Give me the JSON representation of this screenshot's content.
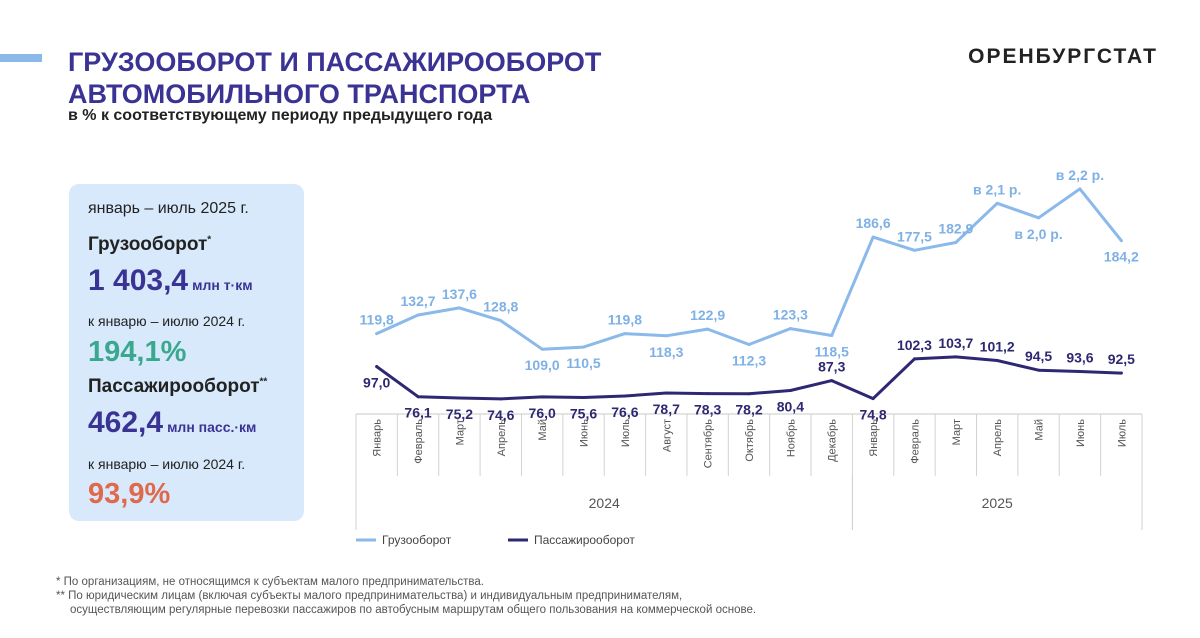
{
  "header": {
    "title_line1": "ГРУЗООБОРОТ И ПАССАЖИРООБОРОТ",
    "title_line2": "АВТОМОБИЛЬНОГО ТРАНСПОРТА",
    "subtitle": "в % к соответствующему периоду предыдущего года",
    "logo": "ОРЕНБУРГСТАТ"
  },
  "colors": {
    "title": "#3b3394",
    "freight": "#8ab9ea",
    "passenger": "#2e2872",
    "green": "#3aa88e",
    "red": "#e0694a",
    "panel": "#d8e9fb"
  },
  "panel": {
    "period": "январь – июль 2025 г.",
    "freight_label": "Грузооборот",
    "freight_mark": "*",
    "freight_value": "1 403,4",
    "freight_unit": "млн т·км",
    "freight_compare": "к январю – июлю 2024 г.",
    "freight_pct": "194,1%",
    "passenger_label": "Пассажирооборот",
    "passenger_mark": "**",
    "passenger_value": "462,4",
    "passenger_unit": "млн пасс.·км",
    "passenger_compare": "к январю – июлю 2024 г.",
    "passenger_pct": "93,9%"
  },
  "chart_data": {
    "type": "line",
    "categories": [
      "Январь",
      "Февраль",
      "Март",
      "Апрель",
      "Май",
      "Июнь",
      "Июль",
      "Август",
      "Сентябрь",
      "Октябрь",
      "Ноябрь",
      "Декабрь",
      "Январь",
      "Февраль",
      "Март",
      "Апрель",
      "Май",
      "Июнь",
      "Июль"
    ],
    "year_groups": [
      {
        "label": "2024",
        "start": 0,
        "end": 11
      },
      {
        "label": "2025",
        "start": 12,
        "end": 18
      }
    ],
    "ylim": [
      60,
      240
    ],
    "series": [
      {
        "name": "Грузооборот",
        "color": "#8ab9ea",
        "values": [
          119.8,
          132.7,
          137.6,
          128.8,
          109.0,
          110.5,
          119.8,
          118.3,
          122.9,
          112.3,
          123.3,
          118.5,
          186.6,
          177.5,
          182.9,
          210,
          200,
          220,
          184.2
        ],
        "labels": [
          "119,8",
          "132,7",
          "137,6",
          "128,8",
          "109,0",
          "110,5",
          "119,8",
          "118,3",
          "122,9",
          "112,3",
          "123,3",
          "118,5",
          "186,6",
          "177,5",
          "182,9",
          "в 2,1 р.",
          "в 2,0 р.",
          "в 2,2 р.",
          "184,2"
        ],
        "label_pos": [
          "above",
          "above",
          "above",
          "above",
          "below",
          "below",
          "above",
          "below",
          "above",
          "below",
          "above",
          "below",
          "above",
          "above",
          "above",
          "above",
          "below",
          "above",
          "below"
        ]
      },
      {
        "name": "Пассажирооборот",
        "color": "#2e2872",
        "values": [
          97.0,
          76.1,
          75.2,
          74.6,
          76.0,
          75.6,
          76.6,
          78.7,
          78.3,
          78.2,
          80.4,
          87.3,
          74.8,
          102.3,
          103.7,
          101.2,
          94.5,
          93.6,
          92.5
        ],
        "labels": [
          "97,0",
          "76,1",
          "75,2",
          "74,6",
          "76,0",
          "75,6",
          "76,6",
          "78,7",
          "78,3",
          "78,2",
          "80,4",
          "87,3",
          "74,8",
          "102,3",
          "103,7",
          "101,2",
          "94,5",
          "93,6",
          "92,5"
        ],
        "label_pos": [
          "below",
          "below",
          "below",
          "below",
          "below",
          "below",
          "below",
          "below",
          "below",
          "below",
          "below",
          "above",
          "below",
          "above",
          "above",
          "above",
          "above",
          "above",
          "above"
        ]
      }
    ],
    "legend": "bottom-left"
  },
  "footnotes": {
    "f1": "* По организациям, не относящимся к субъектам малого предпринимательства.",
    "f2": "** По юридическим лицам (включая субъекты малого предпринимательства) и индивидуальным предпринимателям,",
    "f3": "осуществляющим регулярные перевозки пассажиров по автобусным маршрутам общего пользования на коммерческой основе."
  }
}
